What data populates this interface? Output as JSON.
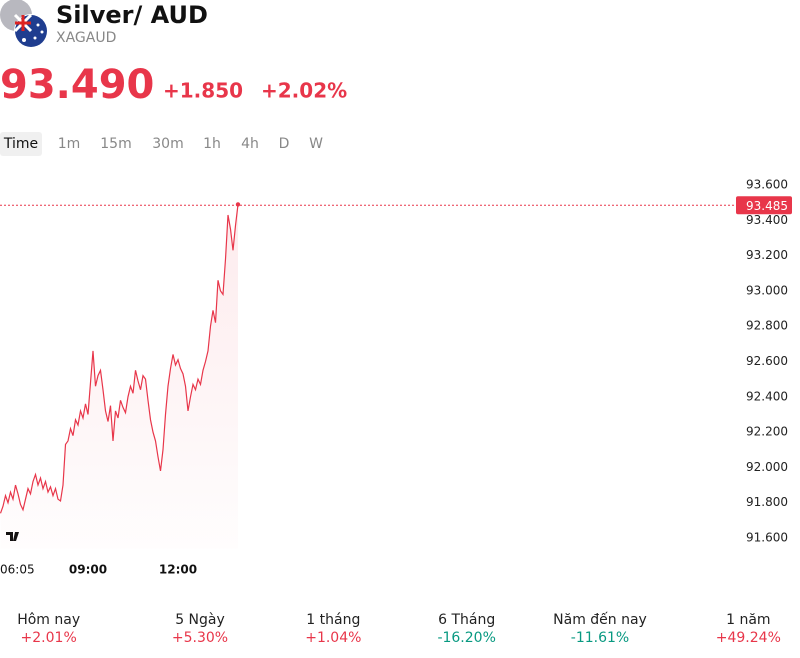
{
  "header": {
    "title": "Silver/ AUD",
    "symbol": "XAGAUD",
    "price": "93.490",
    "change": "+1.850",
    "change_pct": "+2.02%"
  },
  "tabs": [
    "Time",
    "1m",
    "15m",
    "30m",
    "1h",
    "4h",
    "D",
    "W"
  ],
  "chart_data": {
    "type": "line",
    "color": "#e8364a",
    "grid": false,
    "categories": [
      "06:05",
      null,
      null,
      null,
      null,
      null,
      null,
      null,
      null,
      null,
      null,
      null,
      null,
      null,
      null,
      null,
      null,
      null,
      null,
      null,
      null,
      null,
      null,
      null,
      null,
      null,
      null,
      null,
      null,
      null,
      null,
      null,
      null,
      null,
      null,
      "09:00",
      null,
      null,
      null,
      null,
      null,
      null,
      null,
      null,
      null,
      null,
      null,
      null,
      null,
      null,
      null,
      null,
      null,
      null,
      null,
      null,
      null,
      null,
      null,
      null,
      null,
      null,
      null,
      null,
      null,
      null,
      null,
      null,
      null,
      null,
      null,
      "12:00",
      null,
      null,
      null,
      null,
      null,
      null,
      null,
      null,
      null,
      null,
      null,
      null,
      null,
      null,
      null,
      null,
      null,
      null,
      null,
      null,
      null,
      null,
      null,
      null
    ],
    "values": [
      91.74,
      91.78,
      91.84,
      91.8,
      91.86,
      91.82,
      91.9,
      91.85,
      91.79,
      91.76,
      91.82,
      91.88,
      91.85,
      91.92,
      91.96,
      91.9,
      91.94,
      91.88,
      91.92,
      91.86,
      91.89,
      91.84,
      91.88,
      91.82,
      91.81,
      91.9,
      92.13,
      92.15,
      92.22,
      92.18,
      92.27,
      92.24,
      92.32,
      92.28,
      92.36,
      92.3,
      92.48,
      92.66,
      92.46,
      92.52,
      92.55,
      92.44,
      92.32,
      92.26,
      92.35,
      92.15,
      92.32,
      92.28,
      92.38,
      92.34,
      92.31,
      92.4,
      92.46,
      92.42,
      92.55,
      92.49,
      92.44,
      92.52,
      92.5,
      92.38,
      92.27,
      92.2,
      92.15,
      92.06,
      91.98,
      92.1,
      92.3,
      92.46,
      92.56,
      92.64,
      92.58,
      92.61,
      92.56,
      92.53,
      92.46,
      92.32,
      92.4,
      92.47,
      92.44,
      92.5,
      92.47,
      92.55,
      92.6,
      92.66,
      92.8,
      92.89,
      92.82,
      93.06,
      93.0,
      92.98,
      93.18,
      93.43,
      93.35,
      93.23,
      93.37,
      93.49
    ],
    "last_value": 93.485,
    "ylim": [
      91.54,
      93.69
    ],
    "yticks": [
      {
        "value": 91.6,
        "label": "91.600"
      },
      {
        "value": 91.8,
        "label": "91.800"
      },
      {
        "value": 92.0,
        "label": "92.000"
      },
      {
        "value": 92.2,
        "label": "92.200"
      },
      {
        "value": 92.4,
        "label": "92.400"
      },
      {
        "value": 92.6,
        "label": "92.600"
      },
      {
        "value": 92.8,
        "label": "92.800"
      },
      {
        "value": 93.0,
        "label": "93.000"
      },
      {
        "value": 93.2,
        "label": "93.200"
      },
      {
        "value": 93.4,
        "label": "93.400"
      },
      {
        "value": 93.6,
        "label": "93.600"
      }
    ]
  },
  "performance": [
    {
      "label": "Hôm nay",
      "value": "+2.01%"
    },
    {
      "label": "5 Ngày",
      "value": "+5.30%"
    },
    {
      "label": "1 tháng",
      "value": "+1.04%"
    },
    {
      "label": "6 Tháng",
      "value": "-16.20%"
    },
    {
      "label": "Năm đến nay",
      "value": "-11.61%"
    },
    {
      "label": "1 năm",
      "value": "+49.24%"
    }
  ]
}
